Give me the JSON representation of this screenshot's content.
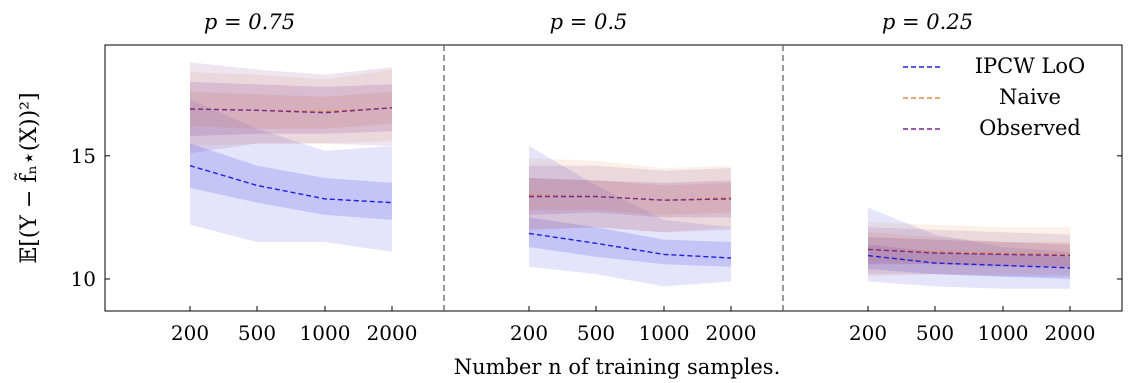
{
  "chart_data": {
    "type": "line",
    "ylabel": "𝔼[(Y − f̃ₙ⋆(X))²]",
    "xlabel": "Number n of training samples.",
    "ylim": [
      8.7,
      19.5
    ],
    "yticks": [
      10,
      15
    ],
    "categories": [
      "200",
      "500",
      "1000",
      "2000"
    ],
    "legend": {
      "placement": "top-right"
    },
    "series_styles": [
      {
        "name": "IPCW LoO",
        "color": "#1f1fe0"
      },
      {
        "name": "Naive",
        "color": "#e08a4c"
      },
      {
        "name": "Observed",
        "color": "#7a2a8a"
      }
    ],
    "panels": [
      {
        "title": "p = 0.75",
        "series": [
          {
            "name": "IPCW LoO",
            "values": [
              14.6,
              13.8,
              13.25,
              13.1
            ],
            "band_inner": [
              [
                13.7,
                15.5
              ],
              [
                13.1,
                14.6
              ],
              [
                12.6,
                14.1
              ],
              [
                12.4,
                13.9
              ]
            ],
            "band_outer": [
              [
                12.2,
                17.3
              ],
              [
                11.5,
                16.1
              ],
              [
                11.5,
                15.2
              ],
              [
                11.1,
                15.4
              ]
            ]
          },
          {
            "name": "Naive",
            "values": [
              16.9,
              16.85,
              16.8,
              16.95
            ],
            "band_inner": [
              [
                16.2,
                17.6
              ],
              [
                16.1,
                17.5
              ],
              [
                16.1,
                17.4
              ],
              [
                16.3,
                17.6
              ]
            ],
            "band_outer": [
              [
                15.4,
                18.4
              ],
              [
                15.5,
                18.3
              ],
              [
                15.5,
                18.1
              ],
              [
                15.6,
                18.5
              ]
            ]
          },
          {
            "name": "Observed",
            "values": [
              16.9,
              16.85,
              16.75,
              16.95
            ],
            "band_inner": [
              [
                15.8,
                18.0
              ],
              [
                15.9,
                17.9
              ],
              [
                15.9,
                17.8
              ],
              [
                16.0,
                17.9
              ]
            ],
            "band_outer": [
              [
                15.1,
                18.8
              ],
              [
                15.5,
                18.5
              ],
              [
                15.5,
                18.3
              ],
              [
                15.4,
                18.6
              ]
            ]
          }
        ]
      },
      {
        "title": "p = 0.5",
        "series": [
          {
            "name": "IPCW LoO",
            "values": [
              11.85,
              11.45,
              11.0,
              10.85
            ],
            "band_inner": [
              [
                11.3,
                12.5
              ],
              [
                10.9,
                12.1
              ],
              [
                10.6,
                11.6
              ],
              [
                10.5,
                11.5
              ]
            ],
            "band_outer": [
              [
                10.5,
                15.4
              ],
              [
                10.2,
                13.8
              ],
              [
                9.7,
                12.4
              ],
              [
                9.9,
                12.1
              ]
            ]
          },
          {
            "name": "Naive",
            "values": [
              13.4,
              13.35,
              13.2,
              13.3
            ],
            "band_inner": [
              [
                12.8,
                14.1
              ],
              [
                12.8,
                14.0
              ],
              [
                12.6,
                13.8
              ],
              [
                12.7,
                13.9
              ]
            ],
            "band_outer": [
              [
                12.0,
                14.9
              ],
              [
                12.1,
                14.8
              ],
              [
                11.9,
                14.5
              ],
              [
                12.1,
                14.6
              ]
            ]
          },
          {
            "name": "Observed",
            "values": [
              13.35,
              13.35,
              13.2,
              13.25
            ],
            "band_inner": [
              [
                12.6,
                14.1
              ],
              [
                12.7,
                14.0
              ],
              [
                12.5,
                13.9
              ],
              [
                12.5,
                14.0
              ]
            ],
            "band_outer": [
              [
                12.0,
                14.6
              ],
              [
                12.1,
                14.6
              ],
              [
                11.9,
                14.4
              ],
              [
                12.0,
                14.5
              ]
            ]
          }
        ]
      },
      {
        "title": "p = 0.25",
        "series": [
          {
            "name": "IPCW LoO",
            "values": [
              10.95,
              10.65,
              10.55,
              10.45
            ],
            "band_inner": [
              [
                10.4,
                11.4
              ],
              [
                10.2,
                11.1
              ],
              [
                10.1,
                11.0
              ],
              [
                10.0,
                10.9
              ]
            ],
            "band_outer": [
              [
                9.9,
                12.9
              ],
              [
                9.7,
                11.8
              ],
              [
                9.6,
                11.3
              ],
              [
                9.6,
                11.1
              ]
            ]
          },
          {
            "name": "Naive",
            "values": [
              11.2,
              11.1,
              11.05,
              11.0
            ],
            "band_inner": [
              [
                10.7,
                11.9
              ],
              [
                10.6,
                11.7
              ],
              [
                10.6,
                11.5
              ],
              [
                10.5,
                11.5
              ]
            ],
            "band_outer": [
              [
                10.1,
                12.3
              ],
              [
                10.2,
                12.2
              ],
              [
                10.2,
                12.1
              ],
              [
                10.2,
                12.1
              ]
            ]
          },
          {
            "name": "Observed",
            "values": [
              11.2,
              11.05,
              11.0,
              10.95
            ],
            "band_inner": [
              [
                10.6,
                11.7
              ],
              [
                10.6,
                11.6
              ],
              [
                10.5,
                11.5
              ],
              [
                10.5,
                11.4
              ]
            ],
            "band_outer": [
              [
                10.2,
                12.1
              ],
              [
                10.2,
                12.0
              ],
              [
                10.1,
                11.9
              ],
              [
                10.1,
                11.8
              ]
            ]
          }
        ]
      }
    ]
  }
}
